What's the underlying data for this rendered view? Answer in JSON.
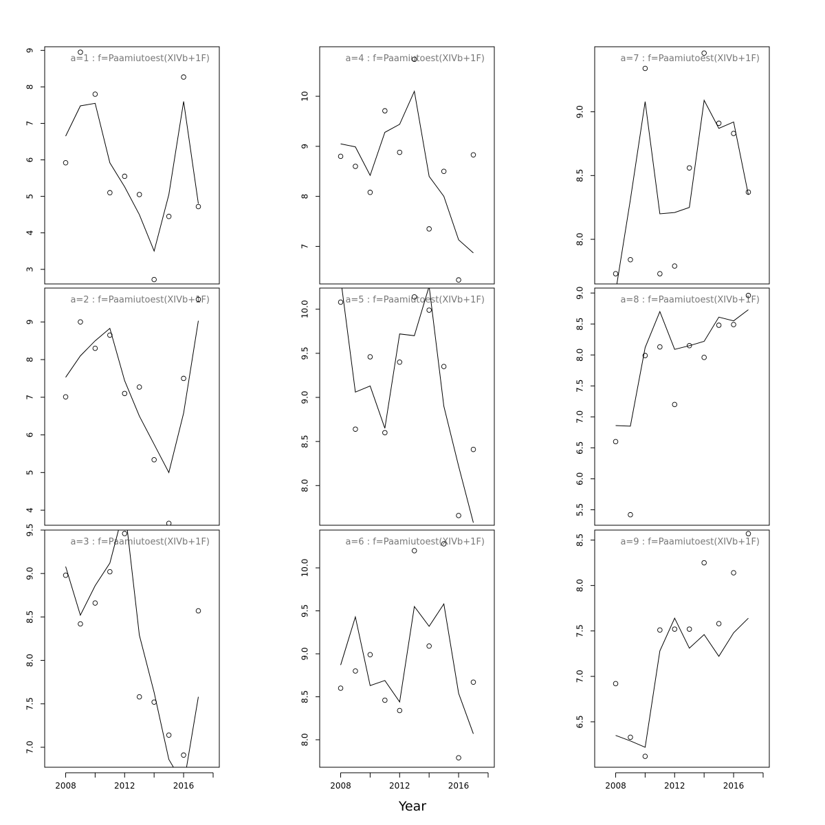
{
  "chart_data": {
    "type": "line",
    "layout": "3x3 small multiples",
    "xlabel": "Year",
    "x": [
      2008,
      2009,
      2010,
      2011,
      2012,
      2013,
      2014,
      2015,
      2016,
      2017
    ],
    "xlim": [
      2008,
      2017
    ],
    "xticks": [
      2008,
      2012,
      2016
    ],
    "legend": "none",
    "panels": [
      {
        "title": "a=1 : f=Paamiutoest(XIVb+1F)",
        "ylim": [
          2.6,
          9.1
        ],
        "yticks": [
          3,
          4,
          5,
          6,
          7,
          8,
          9
        ],
        "series": [
          {
            "style": "line",
            "values": [
              6.65,
              7.48,
              7.55,
              5.92,
              5.26,
              4.5,
              3.5,
              5.05,
              7.6,
              4.8
            ]
          },
          {
            "style": "points",
            "values": [
              5.92,
              8.95,
              7.8,
              5.1,
              5.55,
              5.05,
              2.72,
              4.45,
              8.27,
              4.72
            ]
          }
        ]
      },
      {
        "title": "a=2 : f=Paamiutoest(XIVb+1F)",
        "ylim": [
          3.6,
          9.9
        ],
        "yticks": [
          4,
          5,
          6,
          7,
          8,
          9
        ],
        "series": [
          {
            "style": "line",
            "values": [
              7.53,
              8.1,
              8.5,
              8.83,
              7.44,
              6.5,
              5.75,
              5.0,
              6.58,
              9.03
            ]
          },
          {
            "style": "points",
            "values": [
              7.01,
              9.0,
              8.3,
              8.65,
              7.1,
              7.27,
              5.34,
              3.65,
              7.5,
              9.6
            ]
          }
        ]
      },
      {
        "title": "a=3 : f=Paamiutoest(XIVb+1F)",
        "ylim": [
          6.77,
          9.5
        ],
        "yticks": [
          7.0,
          7.5,
          8.0,
          8.5,
          9.0,
          9.5
        ],
        "series": [
          {
            "style": "line",
            "values": [
              9.08,
              8.52,
              8.86,
              9.12,
              9.77,
              8.29,
              7.63,
              6.86,
              6.57,
              7.58
            ]
          },
          {
            "style": "points",
            "values": [
              8.98,
              8.42,
              8.66,
              9.02,
              9.46,
              7.58,
              7.52,
              7.14,
              6.91,
              8.57
            ]
          }
        ]
      },
      {
        "title": "a=4 : f=Paamiutoest(XIVb+1F)",
        "ylim": [
          6.25,
          10.99
        ],
        "yticks": [
          7,
          8,
          9,
          10
        ],
        "series": [
          {
            "style": "line",
            "values": [
              9.05,
              8.99,
              8.42,
              9.28,
              9.44,
              10.1,
              8.4,
              8.0,
              7.13,
              6.87
            ]
          },
          {
            "style": "points",
            "values": [
              8.8,
              8.6,
              8.08,
              9.71,
              8.88,
              10.74,
              7.35,
              8.5,
              6.33,
              8.83
            ]
          }
        ]
      },
      {
        "title": "a=5 : f=Paamiutoest(XIVb+1F)",
        "ylim": [
          7.55,
          10.24
        ],
        "yticks": [
          8.0,
          8.5,
          9.0,
          9.5,
          10.0
        ],
        "series": [
          {
            "style": "line",
            "values": [
              10.35,
              9.06,
              9.13,
              8.65,
              9.72,
              9.7,
              10.26,
              8.9,
              8.22,
              7.58
            ]
          },
          {
            "style": "points",
            "values": [
              10.08,
              8.64,
              9.46,
              8.6,
              9.4,
              10.14,
              9.99,
              9.35,
              7.66,
              8.41
            ]
          }
        ]
      },
      {
        "title": "a=6 : f=Paamiutoest(XIVb+1F)",
        "ylim": [
          7.68,
          10.44
        ],
        "yticks": [
          8.0,
          8.5,
          9.0,
          9.5,
          10.0
        ],
        "series": [
          {
            "style": "line",
            "values": [
              8.87,
              9.43,
              8.63,
              8.69,
              8.44,
              9.55,
              9.32,
              9.58,
              8.54,
              8.07
            ]
          },
          {
            "style": "points",
            "values": [
              8.6,
              8.8,
              8.99,
              8.46,
              8.34,
              10.2,
              9.09,
              10.28,
              7.79,
              8.67
            ]
          }
        ]
      },
      {
        "title": "a=7 : f=Paamiutoest(XIVb+1F)",
        "ylim": [
          7.65,
          9.51
        ],
        "yticks": [
          8.0,
          8.5,
          9.0
        ],
        "series": [
          {
            "style": "line",
            "values": [
              7.59,
              8.31,
              9.08,
              8.2,
              8.21,
              8.25,
              9.09,
              8.87,
              8.92,
              8.35
            ]
          },
          {
            "style": "points",
            "values": [
              7.73,
              7.84,
              9.34,
              7.73,
              7.79,
              8.56,
              9.46,
              8.91,
              8.83,
              8.37
            ]
          }
        ]
      },
      {
        "title": "a=8 : f=Paamiutoest(XIVb+1F)",
        "ylim": [
          5.25,
          9.08
        ],
        "yticks": [
          5.5,
          6.0,
          6.5,
          7.0,
          7.5,
          8.0,
          8.5,
          9.0
        ],
        "series": [
          {
            "style": "line",
            "values": [
              6.86,
              6.85,
              8.12,
              8.7,
              8.09,
              8.15,
              8.22,
              8.61,
              8.55,
              8.73
            ]
          },
          {
            "style": "points",
            "values": [
              6.6,
              5.42,
              7.99,
              8.13,
              7.2,
              8.15,
              7.96,
              8.48,
              8.49,
              8.96
            ]
          }
        ]
      },
      {
        "title": "a=9 : f=Paamiutoest(XIVb+1F)",
        "ylim": [
          6.0,
          8.61
        ],
        "yticks": [
          6.5,
          7.0,
          7.5,
          8.0,
          8.5
        ],
        "series": [
          {
            "style": "line",
            "values": [
              6.35,
              6.29,
              6.22,
              7.28,
              7.64,
              7.31,
              7.46,
              7.22,
              7.48,
              7.64
            ]
          },
          {
            "style": "points",
            "values": [
              6.92,
              6.33,
              6.12,
              7.51,
              7.52,
              7.52,
              8.25,
              7.58,
              8.14,
              8.57
            ]
          }
        ]
      }
    ]
  }
}
